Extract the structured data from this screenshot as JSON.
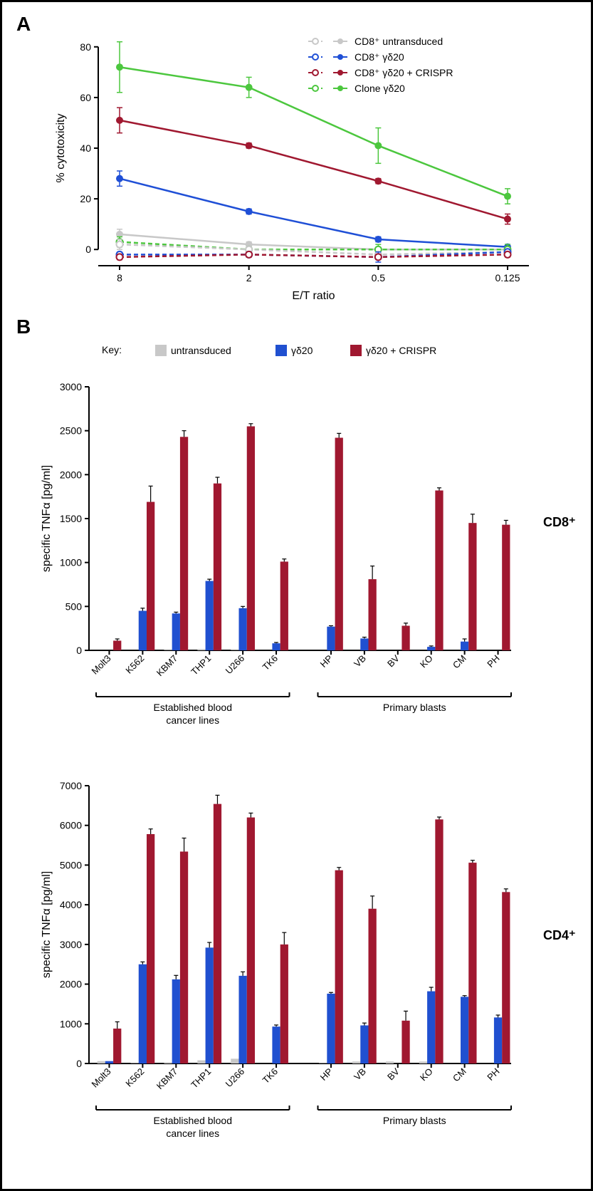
{
  "panelA": {
    "label": "A",
    "type": "line",
    "ylabel": "% cytotoxicity",
    "xlabel": "E/T ratio",
    "xticks": [
      "8",
      "2",
      "0.5",
      "0.125"
    ],
    "yticks": [
      0,
      20,
      40,
      60,
      80
    ],
    "ylim": [
      -5,
      85
    ],
    "legend_items": [
      {
        "label": "CD8⁺ untransduced",
        "color": "#c8c8c8"
      },
      {
        "label": "CD8⁺ γδ20",
        "color": "#1f4fd6"
      },
      {
        "label": " CD8⁺ γδ20 + CRISPR",
        "color": "#a01830"
      },
      {
        "label": "Clone γδ20",
        "color": "#4cc73e"
      }
    ],
    "series": [
      {
        "name": "clone_solid",
        "color": "#4cc73e",
        "dash": "none",
        "marker": "filled",
        "points": [
          [
            0,
            72,
            10
          ],
          [
            1,
            64,
            4
          ],
          [
            2,
            41,
            7
          ],
          [
            3,
            21,
            3
          ]
        ]
      },
      {
        "name": "crispr_solid",
        "color": "#a01830",
        "dash": "none",
        "marker": "filled",
        "points": [
          [
            0,
            51,
            5
          ],
          [
            1,
            41,
            1
          ],
          [
            2,
            27,
            1
          ],
          [
            3,
            12,
            2
          ]
        ]
      },
      {
        "name": "gd20_solid",
        "color": "#1f4fd6",
        "dash": "none",
        "marker": "filled",
        "points": [
          [
            0,
            28,
            3
          ],
          [
            1,
            15,
            1
          ],
          [
            2,
            4,
            1
          ],
          [
            3,
            1,
            1
          ]
        ]
      },
      {
        "name": "untrans_solid",
        "color": "#c8c8c8",
        "dash": "none",
        "marker": "filled",
        "points": [
          [
            0,
            6,
            2
          ],
          [
            1,
            2,
            1
          ],
          [
            2,
            0,
            1
          ],
          [
            3,
            0,
            1
          ]
        ]
      },
      {
        "name": "clone_dash",
        "color": "#4cc73e",
        "dash": "6,4",
        "marker": "open",
        "points": [
          [
            0,
            3,
            2
          ],
          [
            1,
            0,
            1
          ],
          [
            2,
            0,
            2
          ],
          [
            3,
            0,
            2
          ]
        ]
      },
      {
        "name": "untrans_dash",
        "color": "#c8c8c8",
        "dash": "6,4",
        "marker": "open",
        "points": [
          [
            0,
            2,
            2
          ],
          [
            1,
            0,
            1
          ],
          [
            2,
            -2,
            1
          ],
          [
            3,
            -1,
            1
          ]
        ]
      },
      {
        "name": "gd20_dash",
        "color": "#1f4fd6",
        "dash": "6,4",
        "marker": "open",
        "points": [
          [
            0,
            -2,
            1
          ],
          [
            1,
            -2,
            1
          ],
          [
            2,
            -3,
            2
          ],
          [
            3,
            -1,
            1
          ]
        ]
      },
      {
        "name": "crispr_dash",
        "color": "#a01830",
        "dash": "6,4",
        "marker": "open",
        "points": [
          [
            0,
            -3,
            1
          ],
          [
            1,
            -2,
            1
          ],
          [
            2,
            -3,
            1
          ],
          [
            3,
            -2,
            1
          ]
        ]
      }
    ]
  },
  "panelB": {
    "label": "B",
    "legend_title": "Key:",
    "legend_items": [
      {
        "label": "untransduced",
        "color": "#c8c8c8"
      },
      {
        "label": "γδ20",
        "color": "#2050d0"
      },
      {
        "label": "γδ20 + CRISPR",
        "color": "#a01830"
      }
    ],
    "ylabel": "specific TNFα [pg/ml]",
    "group1_label": "Established blood\ncancer lines",
    "group2_label": "Primary blasts",
    "categories_g1": [
      "Molt3",
      "K562",
      "KBM7",
      "THP1",
      "U266",
      "TK6"
    ],
    "categories_g2": [
      "HP",
      "VB",
      "BV",
      "KO",
      "CM",
      "PH"
    ],
    "chart_cd8": {
      "side_label": "CD8⁺",
      "ylim": [
        0,
        3000
      ],
      "ytick_step": 500,
      "data_g1": [
        {
          "ut": 0,
          "gd": 0,
          "cr": 110,
          "cr_err": 20
        },
        {
          "ut": 0,
          "gd": 450,
          "gd_err": 30,
          "cr": 1690,
          "cr_err": 180
        },
        {
          "ut": 5,
          "gd": 420,
          "gd_err": 15,
          "cr": 2430,
          "cr_err": 70
        },
        {
          "ut": 15,
          "gd": 790,
          "gd_err": 20,
          "cr": 1900,
          "cr_err": 70
        },
        {
          "ut": 5,
          "gd": 480,
          "gd_err": 20,
          "cr": 2550,
          "cr_err": 30
        },
        {
          "ut": 0,
          "gd": 80,
          "gd_err": 10,
          "cr": 1010,
          "cr_err": 30
        }
      ],
      "data_g2": [
        {
          "ut": 0,
          "gd": 270,
          "gd_err": 10,
          "cr": 2420,
          "cr_err": 50
        },
        {
          "ut": 0,
          "gd": 135,
          "gd_err": 15,
          "cr": 810,
          "cr_err": 150
        },
        {
          "ut": 0,
          "gd": 0,
          "cr": 280,
          "cr_err": 30
        },
        {
          "ut": 0,
          "gd": 40,
          "gd_err": 10,
          "cr": 1820,
          "cr_err": 30
        },
        {
          "ut": 0,
          "gd": 100,
          "gd_err": 30,
          "cr": 1450,
          "cr_err": 100
        },
        {
          "ut": 0,
          "gd": 0,
          "cr": 1430,
          "cr_err": 50
        }
      ]
    },
    "chart_cd4": {
      "side_label": "CD4⁺",
      "ylim": [
        0,
        7000
      ],
      "ytick_step": 1000,
      "data_g1": [
        {
          "ut": 60,
          "gd": 60,
          "cr": 880,
          "cr_err": 170
        },
        {
          "ut": 10,
          "gd": 2500,
          "gd_err": 60,
          "cr": 5780,
          "cr_err": 130
        },
        {
          "ut": 30,
          "gd": 2120,
          "gd_err": 100,
          "cr": 5340,
          "cr_err": 340
        },
        {
          "ut": 80,
          "gd": 2920,
          "gd_err": 130,
          "cr": 6540,
          "cr_err": 220
        },
        {
          "ut": 120,
          "gd": 2210,
          "gd_err": 100,
          "cr": 6200,
          "cr_err": 110
        },
        {
          "ut": 0,
          "gd": 930,
          "gd_err": 40,
          "cr": 3000,
          "cr_err": 300
        }
      ],
      "data_g2": [
        {
          "ut": 10,
          "gd": 1760,
          "gd_err": 30,
          "cr": 4870,
          "cr_err": 70
        },
        {
          "ut": 50,
          "gd": 960,
          "gd_err": 60,
          "cr": 3900,
          "cr_err": 320
        },
        {
          "ut": 50,
          "gd": 0,
          "cr": 1080,
          "cr_err": 240
        },
        {
          "ut": 50,
          "gd": 1820,
          "gd_err": 100,
          "cr": 6150,
          "cr_err": 60
        },
        {
          "ut": 0,
          "gd": 1680,
          "gd_err": 30,
          "cr": 5060,
          "cr_err": 60
        },
        {
          "ut": 0,
          "gd": 1160,
          "gd_err": 60,
          "cr": 4320,
          "cr_err": 80
        }
      ]
    }
  },
  "colors": {
    "gray": "#c8c8c8",
    "blue": "#2050d0",
    "red": "#a01830",
    "green": "#4cc73e",
    "black": "#000000"
  }
}
